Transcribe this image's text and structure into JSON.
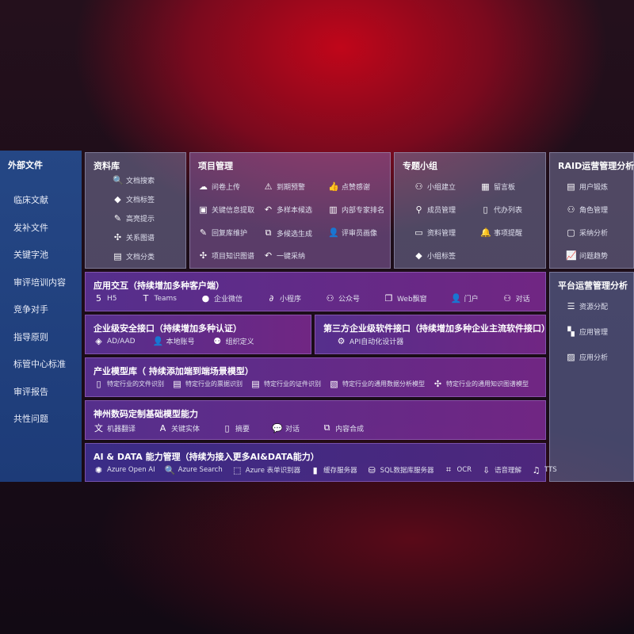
{
  "sidebar": {
    "title": "外部文件",
    "items": [
      "临床文献",
      "发补文件",
      "关键字池",
      "审评培训内容",
      "竞争对手",
      "指导原则",
      "标管中心标准",
      "审评报告",
      "共性问题"
    ]
  },
  "library": {
    "title": "资料库",
    "items": [
      {
        "icon": "doc-search-icon",
        "label": "文档搜索"
      },
      {
        "icon": "tag-icon",
        "label": "文档标签"
      },
      {
        "icon": "pen-icon",
        "label": "高亮提示"
      },
      {
        "icon": "graph-icon",
        "label": "关系图谱"
      },
      {
        "icon": "category-icon",
        "label": "文档分类"
      }
    ]
  },
  "project": {
    "title": "项目管理",
    "items": [
      {
        "icon": "cloud-upload-icon",
        "label": "问卷上传"
      },
      {
        "icon": "alarm-icon",
        "label": "到期预警"
      },
      {
        "icon": "thumbs-up-icon",
        "label": "点赞感谢"
      },
      {
        "icon": "extract-icon",
        "label": "关键信息提取"
      },
      {
        "icon": "reply-icon",
        "label": "多样本候选"
      },
      {
        "icon": "ranking-icon",
        "label": "内部专家排名"
      },
      {
        "icon": "edit-icon",
        "label": "回复库维护"
      },
      {
        "icon": "puzzle-icon",
        "label": "多候选生成"
      },
      {
        "icon": "user-icon",
        "label": "评审员画像"
      },
      {
        "icon": "graph-icon",
        "label": "项目知识图谱"
      },
      {
        "icon": "reply-icon",
        "label": "一键采纳"
      }
    ]
  },
  "group": {
    "title": "专题小组",
    "items": [
      {
        "icon": "users-icon",
        "label": "小组建立"
      },
      {
        "icon": "bbs-icon",
        "label": "留言板"
      },
      {
        "icon": "user-add-icon",
        "label": "成员管理"
      },
      {
        "icon": "clipboard-icon",
        "label": "代办列表"
      },
      {
        "icon": "folder-icon",
        "label": "资料管理"
      },
      {
        "icon": "bell-icon",
        "label": "事项提醒"
      },
      {
        "icon": "tag-icon",
        "label": "小组标签"
      }
    ]
  },
  "raid": {
    "title": "RAID运营管理分析",
    "items": [
      {
        "icon": "id-card-icon",
        "label": "用户锻炼"
      },
      {
        "icon": "users-icon",
        "label": "角色管理"
      },
      {
        "icon": "qa-icon",
        "label": "采纳分析"
      },
      {
        "icon": "trend-icon",
        "label": "问题趋势"
      }
    ]
  },
  "platform": {
    "title": "平台运营管理分析",
    "items": [
      {
        "icon": "list-icon",
        "label": "资源分配"
      },
      {
        "icon": "apps-icon",
        "label": "应用管理"
      },
      {
        "icon": "chart-icon",
        "label": "应用分析"
      }
    ]
  },
  "app": {
    "title": "应用交互（持续增加多种客户端）",
    "items": [
      {
        "icon": "html5-icon",
        "label": "H5"
      },
      {
        "icon": "teams-icon",
        "label": "Teams"
      },
      {
        "icon": "wechat-icon",
        "label": "企业微信"
      },
      {
        "icon": "miniprogram-icon",
        "label": "小程序"
      },
      {
        "icon": "users-icon",
        "label": "公众号"
      },
      {
        "icon": "window-icon",
        "label": "Web飘窗"
      },
      {
        "icon": "portal-icon",
        "label": "门户"
      },
      {
        "icon": "chat-users-icon",
        "label": "对话"
      }
    ]
  },
  "security": {
    "title": "企业级安全接口（持续增加多种认证）",
    "items": [
      {
        "icon": "aad-icon",
        "label": "AD/AAD"
      },
      {
        "icon": "account-icon",
        "label": "本地账号"
      },
      {
        "icon": "org-icon",
        "label": "组织定义"
      }
    ]
  },
  "thirdparty": {
    "title": "第三方企业级软件接口（持续增加多种企业主流软件接口）",
    "items": [
      {
        "icon": "gear-icon",
        "label": "API自动化设计器"
      }
    ]
  },
  "industry": {
    "title": "产业模型库（ 持续添加端到端场景模型）",
    "items": [
      {
        "icon": "file-icon",
        "label": "特定行业的文件识别"
      },
      {
        "icon": "receipt-icon",
        "label": "特定行业的票据识别"
      },
      {
        "icon": "id-card-icon",
        "label": "特定行业的证件识别"
      },
      {
        "icon": "image-icon",
        "label": "特定行业的通用数据分析模型"
      },
      {
        "icon": "graph-icon",
        "label": "特定行业的通用知识图谱模型"
      }
    ]
  },
  "base": {
    "title": "神州数码定制基础模型能力",
    "items": [
      {
        "icon": "translate-icon",
        "label": "机器翻译"
      },
      {
        "icon": "entity-icon",
        "label": "关键实体"
      },
      {
        "icon": "summary-icon",
        "label": "摘要"
      },
      {
        "icon": "chat-icon",
        "label": "对话"
      },
      {
        "icon": "puzzle-icon",
        "label": "内容合成"
      }
    ]
  },
  "ai": {
    "title": "AI & DATA 能力管理（持续为接入更多AI&DATA能力）",
    "items": [
      {
        "icon": "openai-icon",
        "label": "Azure Open AI"
      },
      {
        "icon": "search-icon",
        "label": "Azure Search"
      },
      {
        "icon": "form-icon",
        "label": "Azure 表单识别器"
      },
      {
        "icon": "cache-icon",
        "label": "缓存服务器"
      },
      {
        "icon": "database-icon",
        "label": "SQL数据库服务器"
      },
      {
        "icon": "ocr-icon",
        "label": "OCR"
      },
      {
        "icon": "speech-icon",
        "label": "语音理解"
      },
      {
        "icon": "tts-icon",
        "label": "TTS"
      }
    ]
  }
}
